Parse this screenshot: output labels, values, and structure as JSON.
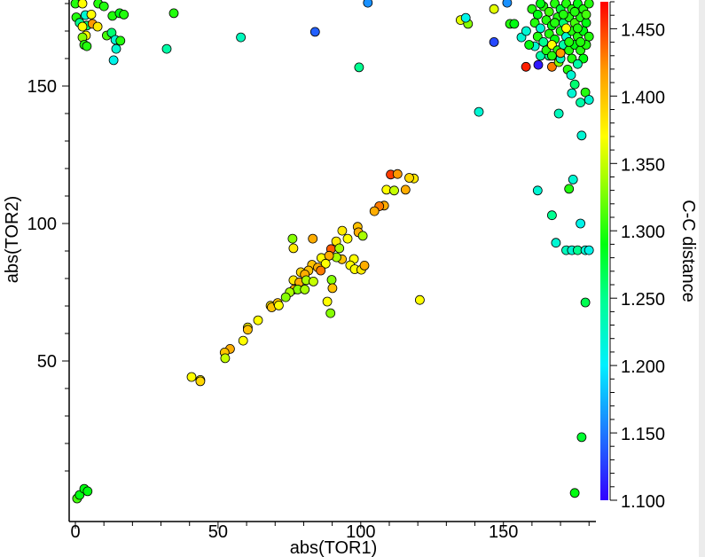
{
  "chart_data": {
    "type": "scatter",
    "title": "",
    "xlabel": "abs(TOR1)",
    "ylabel": "abs(TOR2)",
    "xlim": [
      -2,
      182
    ],
    "ylim": [
      -8.4,
      181
    ],
    "x_ticks": [
      0,
      50,
      100,
      150
    ],
    "y_ticks": [
      50,
      100,
      150
    ],
    "grid": false,
    "colorbar": {
      "label": "C-C distance",
      "range": [
        1.1,
        1.47
      ],
      "ticks": [
        "1.100",
        "1.150",
        "1.200",
        "1.250",
        "1.300",
        "1.350",
        "1.400",
        "1.450"
      ],
      "tick_values": [
        1.1,
        1.15,
        1.2,
        1.25,
        1.3,
        1.35,
        1.4,
        1.45
      ],
      "colormap": [
        [
          1.1,
          "#3300ff"
        ],
        [
          1.15,
          "#1e78ff"
        ],
        [
          1.2,
          "#00f0ff"
        ],
        [
          1.25,
          "#00ff90"
        ],
        [
          1.29,
          "#00ff10"
        ],
        [
          1.34,
          "#a8ff00"
        ],
        [
          1.37,
          "#ffff00"
        ],
        [
          1.42,
          "#ff9900"
        ],
        [
          1.47,
          "#ff0000"
        ]
      ]
    },
    "points": [
      [
        0,
        180,
        1.3
      ],
      [
        2.5,
        180,
        1.37
      ],
      [
        8,
        180,
        1.3
      ],
      [
        10,
        179,
        1.3
      ],
      [
        13,
        175.5,
        1.3
      ],
      [
        15.5,
        176.5,
        1.29
      ],
      [
        17,
        176,
        1.3
      ],
      [
        3.5,
        175.8,
        1.22
      ],
      [
        5.6,
        176,
        1.37
      ],
      [
        0.3,
        175,
        1.3
      ],
      [
        1.5,
        173,
        1.25
      ],
      [
        4,
        172,
        1.26
      ],
      [
        6,
        172.6,
        1.42
      ],
      [
        2.5,
        171.6,
        1.37
      ],
      [
        7.8,
        171.6,
        1.38
      ],
      [
        11,
        168.4,
        1.31
      ],
      [
        12.7,
        169.4,
        1.26
      ],
      [
        14,
        166.8,
        1.22
      ],
      [
        15.8,
        166.5,
        1.3
      ],
      [
        3.7,
        168.4,
        1.37
      ],
      [
        2.5,
        167.7,
        1.33
      ],
      [
        3.1,
        165,
        1.3
      ],
      [
        4,
        164.5,
        1.3
      ],
      [
        13.4,
        159.4,
        1.21
      ],
      [
        14.3,
        163.5,
        1.22
      ],
      [
        32,
        163.5,
        1.24
      ],
      [
        34.5,
        176.5,
        1.3
      ],
      [
        58,
        167.7,
        1.23
      ],
      [
        99.4,
        156.8,
        1.25
      ],
      [
        84,
        169.7,
        1.14
      ],
      [
        102.5,
        180.3,
        1.16
      ],
      [
        135,
        174,
        1.36
      ],
      [
        137.6,
        172.6,
        1.33
      ],
      [
        136.8,
        174.8,
        1.21
      ],
      [
        146.7,
        178,
        1.36
      ],
      [
        151.3,
        180.3,
        1.16
      ],
      [
        152.3,
        172.6,
        1.3
      ],
      [
        153.8,
        172.6,
        1.29
      ],
      [
        146.7,
        166,
        1.13
      ],
      [
        156.3,
        167.7,
        1.22
      ],
      [
        141.4,
        140.6,
        1.22
      ],
      [
        157.9,
        157,
        1.46
      ],
      [
        162.2,
        157.7,
        1.11
      ],
      [
        167,
        157,
        1.43
      ],
      [
        161,
        164.5,
        1.22
      ],
      [
        163,
        161,
        1.24
      ],
      [
        166,
        161,
        1.25
      ],
      [
        169.4,
        158.7,
        1.33
      ],
      [
        172.5,
        156,
        1.3
      ],
      [
        173.7,
        154,
        1.22
      ],
      [
        175,
        150.6,
        1.26
      ],
      [
        178.7,
        147.7,
        1.3
      ],
      [
        180,
        145,
        1.22
      ],
      [
        169.4,
        140,
        1.23
      ],
      [
        174,
        147.4,
        1.22
      ],
      [
        177,
        144,
        1.24
      ],
      [
        160,
        178,
        1.3
      ],
      [
        162,
        176,
        1.29
      ],
      [
        164,
        179,
        1.3
      ],
      [
        166,
        177,
        1.31
      ],
      [
        168,
        180,
        1.3
      ],
      [
        170,
        178,
        1.28
      ],
      [
        172,
        180,
        1.3
      ],
      [
        174,
        178,
        1.3
      ],
      [
        176,
        180,
        1.29
      ],
      [
        178,
        178,
        1.3
      ],
      [
        180,
        180,
        1.3
      ],
      [
        161,
        173,
        1.3
      ],
      [
        163,
        171,
        1.22
      ],
      [
        165,
        174,
        1.3
      ],
      [
        167,
        172,
        1.29
      ],
      [
        169,
        175,
        1.3
      ],
      [
        171,
        173,
        1.26
      ],
      [
        173,
        175,
        1.3
      ],
      [
        175,
        173,
        1.31
      ],
      [
        177,
        175,
        1.3
      ],
      [
        179,
        173,
        1.29
      ],
      [
        162,
        168,
        1.3
      ],
      [
        164,
        166,
        1.25
      ],
      [
        166,
        169,
        1.3
      ],
      [
        168,
        167,
        1.29
      ],
      [
        170,
        170,
        1.3
      ],
      [
        172,
        168,
        1.22
      ],
      [
        174,
        170,
        1.3
      ],
      [
        176,
        168,
        1.3
      ],
      [
        178,
        170,
        1.29
      ],
      [
        180,
        168,
        1.3
      ],
      [
        165,
        163,
        1.3
      ],
      [
        167,
        165,
        1.37
      ],
      [
        169,
        163,
        1.3
      ],
      [
        171,
        165,
        1.24
      ],
      [
        173,
        163,
        1.3
      ],
      [
        175,
        165,
        1.29
      ],
      [
        177,
        163,
        1.3
      ],
      [
        179,
        165,
        1.3
      ],
      [
        170,
        160,
        1.23
      ],
      [
        174,
        160,
        1.3
      ],
      [
        178,
        160,
        1.29
      ],
      [
        163,
        180,
        1.29
      ],
      [
        171,
        176,
        1.3
      ],
      [
        175,
        177,
        1.3
      ],
      [
        179,
        176,
        1.31
      ],
      [
        172,
        171,
        1.37
      ],
      [
        176,
        171,
        1.3
      ],
      [
        168,
        173,
        1.3
      ],
      [
        177,
        166,
        1.3
      ],
      [
        173,
        166,
        1.3
      ],
      [
        170,
        162,
        1.42
      ],
      [
        158,
        170,
        1.22
      ],
      [
        159,
        165,
        1.29
      ],
      [
        167,
        161,
        1.3
      ],
      [
        176,
        158,
        1.24
      ],
      [
        162,
        112,
        1.22
      ],
      [
        173,
        112.6,
        1.3
      ],
      [
        167,
        103,
        1.25
      ],
      [
        174.4,
        116,
        1.22
      ],
      [
        177,
        100,
        1.21
      ],
      [
        168.4,
        93,
        1.22
      ],
      [
        172,
        90.3,
        1.23
      ],
      [
        174,
        90.3,
        1.22
      ],
      [
        176,
        90.3,
        1.25
      ],
      [
        178.7,
        90.3,
        1.22
      ],
      [
        180,
        90.3,
        1.21
      ],
      [
        177.4,
        132,
        1.22
      ],
      [
        178.7,
        71.3,
        1.27
      ],
      [
        177.4,
        22.3,
        1.28
      ],
      [
        175,
        2,
        1.29
      ],
      [
        0.6,
        0,
        1.31
      ],
      [
        1.5,
        1.3,
        1.29
      ],
      [
        3.1,
        3.5,
        1.29
      ],
      [
        4.3,
        2.6,
        1.29
      ],
      [
        110.5,
        117.8,
        1.45
      ],
      [
        112.9,
        118,
        1.42
      ],
      [
        118.6,
        116.4,
        1.38
      ],
      [
        117,
        116.6,
        1.39
      ],
      [
        109,
        112.3,
        1.37
      ],
      [
        111.7,
        112,
        1.35
      ],
      [
        115.7,
        112.3,
        1.41
      ],
      [
        108.2,
        106.5,
        1.41
      ],
      [
        106.5,
        106.3,
        1.43
      ],
      [
        104.8,
        104.5,
        1.41
      ],
      [
        98.9,
        98.8,
        1.4
      ],
      [
        99.2,
        96.8,
        1.41
      ],
      [
        100.7,
        95.5,
        1.34
      ],
      [
        93.5,
        97.4,
        1.38
      ],
      [
        95.4,
        94.5,
        1.37
      ],
      [
        76.1,
        94.5,
        1.33
      ],
      [
        83.2,
        94.5,
        1.41
      ],
      [
        76.4,
        91,
        1.38
      ],
      [
        91.4,
        93.5,
        1.38
      ],
      [
        89.6,
        90.7,
        1.44
      ],
      [
        92.5,
        91,
        1.34
      ],
      [
        93.4,
        87,
        1.4
      ],
      [
        91.5,
        87.7,
        1.34
      ],
      [
        86.2,
        87.5,
        1.37
      ],
      [
        88.9,
        88.3,
        1.41
      ],
      [
        97.6,
        87.1,
        1.37
      ],
      [
        96.3,
        84.8,
        1.37
      ],
      [
        97.9,
        83.4,
        1.37
      ],
      [
        100.2,
        83.2,
        1.38
      ],
      [
        101.3,
        84.7,
        1.41
      ],
      [
        87.7,
        85.4,
        1.37
      ],
      [
        82.9,
        85,
        1.4
      ],
      [
        85,
        84,
        1.41
      ],
      [
        86,
        82.9,
        1.43
      ],
      [
        81.7,
        82.9,
        1.4
      ],
      [
        79,
        82.3,
        1.39
      ],
      [
        80.4,
        81.5,
        1.41
      ],
      [
        76.4,
        79.4,
        1.38
      ],
      [
        78.5,
        78.6,
        1.41
      ],
      [
        80.9,
        79.4,
        1.34
      ],
      [
        83.4,
        78.9,
        1.35
      ],
      [
        76.6,
        76,
        1.41
      ],
      [
        77.9,
        76,
        1.33
      ],
      [
        80.4,
        76,
        1.34
      ],
      [
        75.1,
        75,
        1.34
      ],
      [
        73.7,
        73.2,
        1.33
      ],
      [
        89.8,
        79.5,
        1.33
      ],
      [
        90.1,
        76.5,
        1.4
      ],
      [
        88.3,
        71.6,
        1.37
      ],
      [
        89.4,
        67.4,
        1.33
      ],
      [
        120.7,
        72.2,
        1.37
      ],
      [
        68.4,
        70.1,
        1.38
      ],
      [
        68.8,
        69.5,
        1.4
      ],
      [
        70.9,
        71.1,
        1.4
      ],
      [
        71.3,
        70.2,
        1.37
      ],
      [
        64,
        64.8,
        1.37
      ],
      [
        60.4,
        62.2,
        1.37
      ],
      [
        60.4,
        61.4,
        1.4
      ],
      [
        58.8,
        57.4,
        1.37
      ],
      [
        54.2,
        54.4,
        1.41
      ],
      [
        52.3,
        53.1,
        1.4
      ],
      [
        52.5,
        51,
        1.35
      ],
      [
        40.7,
        44.2,
        1.37
      ],
      [
        43.8,
        43.1,
        1.37
      ],
      [
        43.8,
        42.6,
        1.39
      ]
    ]
  }
}
